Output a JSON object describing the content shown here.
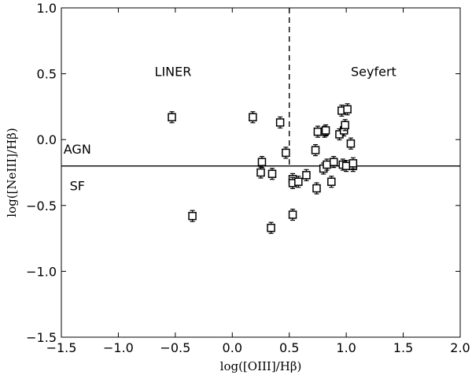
{
  "chart_data": {
    "type": "scatter",
    "title": "",
    "xlabel": "log([OIII]/Hβ)",
    "ylabel": "log([NeIII]/Hβ)",
    "xlim": [
      -1.5,
      2.0
    ],
    "ylim": [
      -1.5,
      1.0
    ],
    "xticks": [
      -1.5,
      -1.0,
      -0.5,
      0.0,
      0.5,
      1.0,
      1.5,
      2.0
    ],
    "xtick_labels": [
      "−1.5",
      "−1.0",
      "−0.5",
      "0.0",
      "0.5",
      "1.0",
      "1.5",
      "2.0"
    ],
    "yticks": [
      -1.5,
      -1.0,
      -0.5,
      0.0,
      0.5,
      1.0
    ],
    "ytick_labels": [
      "−1.5",
      "−1.0",
      "−0.5",
      "0.0",
      "0.5",
      "1.0"
    ],
    "grid": false,
    "marker": "open-square-with-errorbars",
    "points": [
      {
        "x": -0.53,
        "y": 0.17
      },
      {
        "x": -0.35,
        "y": -0.58
      },
      {
        "x": 0.18,
        "y": 0.17
      },
      {
        "x": 0.42,
        "y": 0.13
      },
      {
        "x": 0.47,
        "y": -0.1
      },
      {
        "x": 0.26,
        "y": -0.17
      },
      {
        "x": 0.25,
        "y": -0.25
      },
      {
        "x": 0.35,
        "y": -0.26
      },
      {
        "x": 0.34,
        "y": -0.67
      },
      {
        "x": 0.53,
        "y": -0.3
      },
      {
        "x": 0.53,
        "y": -0.33
      },
      {
        "x": 0.58,
        "y": -0.32
      },
      {
        "x": 0.65,
        "y": -0.27
      },
      {
        "x": 0.53,
        "y": -0.57
      },
      {
        "x": 0.73,
        "y": -0.08
      },
      {
        "x": 0.75,
        "y": 0.06
      },
      {
        "x": 0.74,
        "y": -0.37
      },
      {
        "x": 0.81,
        "y": 0.06
      },
      {
        "x": 0.82,
        "y": 0.07
      },
      {
        "x": 0.8,
        "y": -0.22
      },
      {
        "x": 0.83,
        "y": -0.19
      },
      {
        "x": 0.87,
        "y": -0.32
      },
      {
        "x": 0.89,
        "y": -0.17
      },
      {
        "x": 0.94,
        "y": 0.04
      },
      {
        "x": 0.96,
        "y": 0.22
      },
      {
        "x": 1.01,
        "y": 0.23
      },
      {
        "x": 0.98,
        "y": 0.07
      },
      {
        "x": 0.99,
        "y": 0.11
      },
      {
        "x": 0.97,
        "y": -0.19
      },
      {
        "x": 1.0,
        "y": -0.2
      },
      {
        "x": 1.04,
        "y": -0.03
      },
      {
        "x": 1.06,
        "y": -0.2
      },
      {
        "x": 1.06,
        "y": -0.18
      }
    ],
    "reference_lines": [
      {
        "orientation": "horizontal",
        "y": -0.2,
        "style": "solid"
      },
      {
        "orientation": "vertical",
        "x": 0.5,
        "y_from": -0.2,
        "y_to": 1.0,
        "style": "dashed"
      }
    ],
    "annotations": [
      {
        "text": "LINER",
        "x": -0.52,
        "y": 0.52
      },
      {
        "text": "Seyfert",
        "x": 1.24,
        "y": 0.52
      },
      {
        "text": "AGN",
        "x": -1.36,
        "y": -0.07
      },
      {
        "text": "SF",
        "x": -1.36,
        "y": -0.35
      }
    ]
  }
}
